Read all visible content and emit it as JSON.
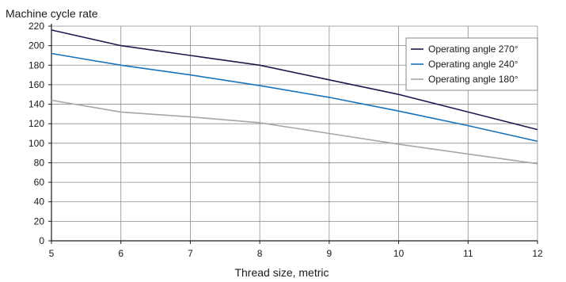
{
  "chart_data": {
    "type": "line",
    "ylabel": "Machine cycle rate",
    "xlabel": "Thread size, metric",
    "xlim": [
      5,
      12
    ],
    "ylim": [
      0,
      220
    ],
    "x_ticks": [
      5,
      6,
      7,
      8,
      9,
      10,
      11,
      12
    ],
    "y_ticks": [
      0,
      20,
      40,
      60,
      80,
      100,
      120,
      140,
      160,
      180,
      200,
      220
    ],
    "grid": true,
    "legend_position": "top-right",
    "series": [
      {
        "name": "Operating angle 270°",
        "color": "#1f1a4d",
        "x": [
          5,
          6,
          7,
          8,
          9,
          10,
          11,
          12
        ],
        "values": [
          216,
          200,
          190,
          180,
          165,
          150,
          132,
          114
        ]
      },
      {
        "name": "Operating angle 240°",
        "color": "#1a73b8",
        "x": [
          5,
          6,
          7,
          8,
          9,
          10,
          11,
          12
        ],
        "values": [
          192,
          180,
          170,
          159,
          147,
          133,
          118,
          102
        ]
      },
      {
        "name": "Operating angle 180°",
        "color": "#a6a6a6",
        "x": [
          5,
          6,
          7,
          8,
          9,
          10,
          11,
          12
        ],
        "values": [
          144,
          132,
          127,
          121,
          110,
          99,
          89,
          79
        ]
      }
    ]
  }
}
